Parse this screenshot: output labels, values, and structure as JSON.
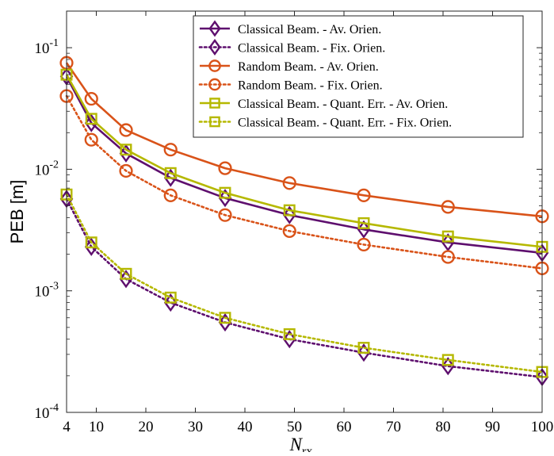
{
  "chart_data": {
    "type": "line",
    "title": "",
    "xlabel": "N",
    "xlabel_sub": "rx",
    "ylabel": "PEB [m]",
    "yscale": "log",
    "xlim": [
      4,
      100
    ],
    "ylim": [
      0.0001,
      0.2
    ],
    "grid": false,
    "legend_position": "top-right",
    "x_ticks": [
      4,
      10,
      20,
      30,
      40,
      50,
      60,
      70,
      80,
      90,
      100
    ],
    "y_ticks": [
      {
        "value": 0.0001,
        "base": "10",
        "exp": "-4"
      },
      {
        "value": 0.001,
        "base": "10",
        "exp": "-3"
      },
      {
        "value": 0.01,
        "base": "10",
        "exp": "-2"
      },
      {
        "value": 0.1,
        "base": "10",
        "exp": "-1"
      }
    ],
    "x": [
      4,
      9,
      16,
      25,
      36,
      49,
      64,
      81,
      100
    ],
    "series": [
      {
        "name": "Classical Beam. - Av. Orien.",
        "color": "#5e0f6e",
        "line": "solid",
        "marker": "diamond",
        "values": [
          0.058,
          0.024,
          0.0135,
          0.0085,
          0.0058,
          0.0042,
          0.0032,
          0.0025,
          0.00205
        ]
      },
      {
        "name": "Classical Beam. - Fix. Orien.",
        "color": "#5e0f6e",
        "line": "dotted",
        "marker": "diamond",
        "values": [
          0.0057,
          0.0023,
          0.00125,
          0.0008,
          0.00055,
          0.0004,
          0.00031,
          0.00024,
          0.000195
        ]
      },
      {
        "name": "Random Beam. - Av. Orien.",
        "color": "#d95319",
        "line": "solid",
        "marker": "circle",
        "values": [
          0.075,
          0.038,
          0.021,
          0.0145,
          0.0102,
          0.0077,
          0.0061,
          0.0049,
          0.0041
        ]
      },
      {
        "name": "Random Beam. - Fix. Orien.",
        "color": "#d95319",
        "line": "dotted",
        "marker": "circle",
        "values": [
          0.04,
          0.0175,
          0.0097,
          0.0061,
          0.0042,
          0.0031,
          0.0024,
          0.0019,
          0.00153
        ]
      },
      {
        "name": "Classical Beam. - Quant. Err. - Av. Orien.",
        "color": "#b5b800",
        "line": "solid",
        "marker": "square",
        "values": [
          0.06,
          0.026,
          0.0145,
          0.0093,
          0.0064,
          0.0046,
          0.0036,
          0.0028,
          0.0023
        ]
      },
      {
        "name": "Classical Beam. - Quant. Err. - Fix. Orien.",
        "color": "#b5b800",
        "line": "dotted",
        "marker": "square",
        "values": [
          0.0062,
          0.0025,
          0.00138,
          0.00088,
          0.0006,
          0.00044,
          0.00034,
          0.00027,
          0.000215
        ]
      }
    ]
  }
}
